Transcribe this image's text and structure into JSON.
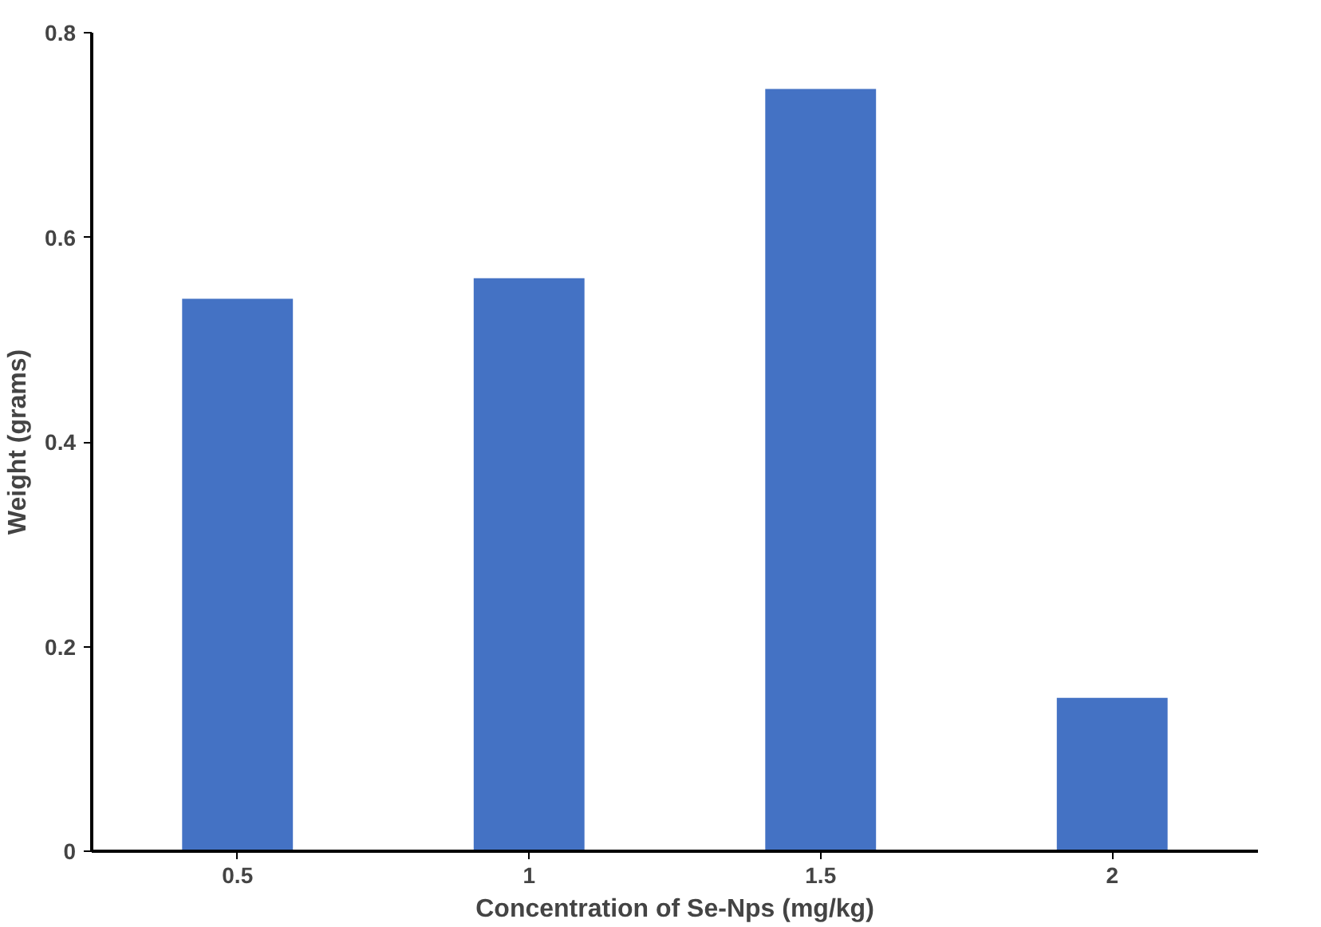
{
  "chart_data": {
    "type": "bar",
    "xlabel": "Concentration of Se-Nps (mg/kg)",
    "ylabel": "Weight (grams)",
    "categories": [
      "0.5",
      "1",
      "1.5",
      "2"
    ],
    "values": [
      0.54,
      0.56,
      0.745,
      0.15
    ],
    "color": "#4472c4",
    "ylim": [
      0,
      0.8
    ],
    "yticks": [
      {
        "value": 0,
        "label": "0"
      },
      0.2,
      0.4,
      0.6,
      0.8
    ]
  }
}
